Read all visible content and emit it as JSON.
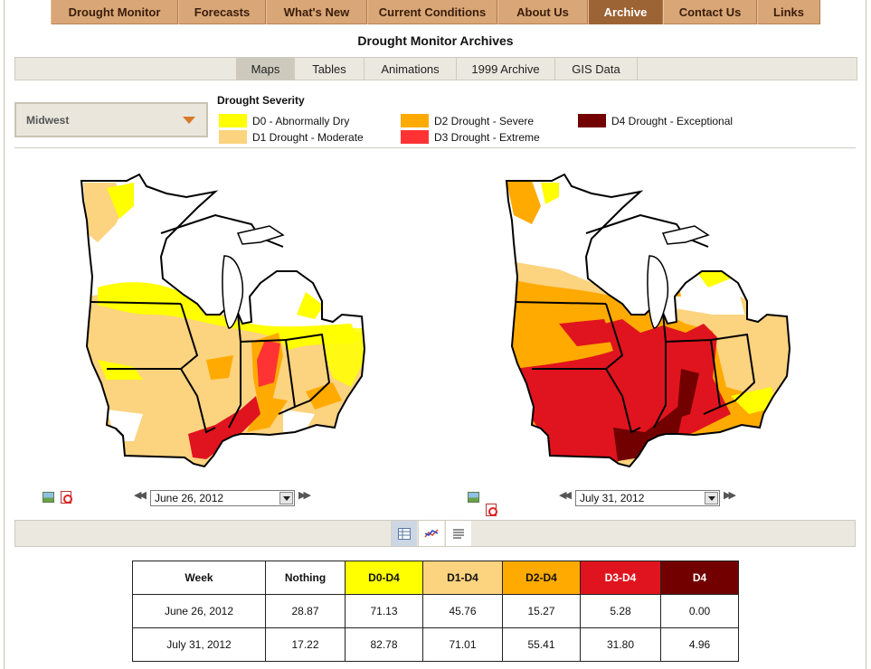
{
  "nav": {
    "items": [
      "Drought Monitor",
      "Forecasts",
      "What's New",
      "Current Conditions",
      "About Us",
      "Archive",
      "Contact Us",
      "Links"
    ],
    "active_index": 5
  },
  "page_title": "Drought Monitor Archives",
  "subtabs": {
    "items": [
      "Maps",
      "Tables",
      "Animations",
      "1999 Archive",
      "GIS Data"
    ],
    "active_index": 0
  },
  "region_select": {
    "value": "Midwest"
  },
  "legend": {
    "title": "Drought Severity",
    "items": [
      {
        "label": "D0 - Abnormally Dry",
        "color": "#ffff00"
      },
      {
        "label": "D1 Drought - Moderate",
        "color": "#fcd37f"
      },
      {
        "label": "D2 Drought - Severe",
        "color": "#ffaa00"
      },
      {
        "label": "D3 Drought - Extreme",
        "color": "#ff3333"
      },
      {
        "label": "D4 Drought - Exceptional",
        "color": "#730000"
      }
    ]
  },
  "maps": {
    "left": {
      "date": "June 26, 2012"
    },
    "right": {
      "date": "July 31, 2012"
    }
  },
  "view_buttons": [
    "table-view-icon",
    "chart-view-icon",
    "text-view-icon"
  ],
  "table": {
    "headers": [
      "Week",
      "Nothing",
      "D0-D4",
      "D1-D4",
      "D2-D4",
      "D3-D4",
      "D4"
    ],
    "rows": [
      [
        "June 26, 2012",
        "28.87",
        "71.13",
        "45.76",
        "15.27",
        "5.28",
        "0.00"
      ],
      [
        "July 31, 2012",
        "17.22",
        "82.78",
        "71.01",
        "55.41",
        "31.80",
        "4.96"
      ]
    ]
  },
  "colors": {
    "nav_bg": "#d9a677",
    "nav_active": "#9c6334",
    "header_d0": "#ffff00",
    "header_d1": "#fcd37f",
    "header_d2": "#ffaa00",
    "header_d3": "#e0141e",
    "header_d4": "#730000"
  }
}
